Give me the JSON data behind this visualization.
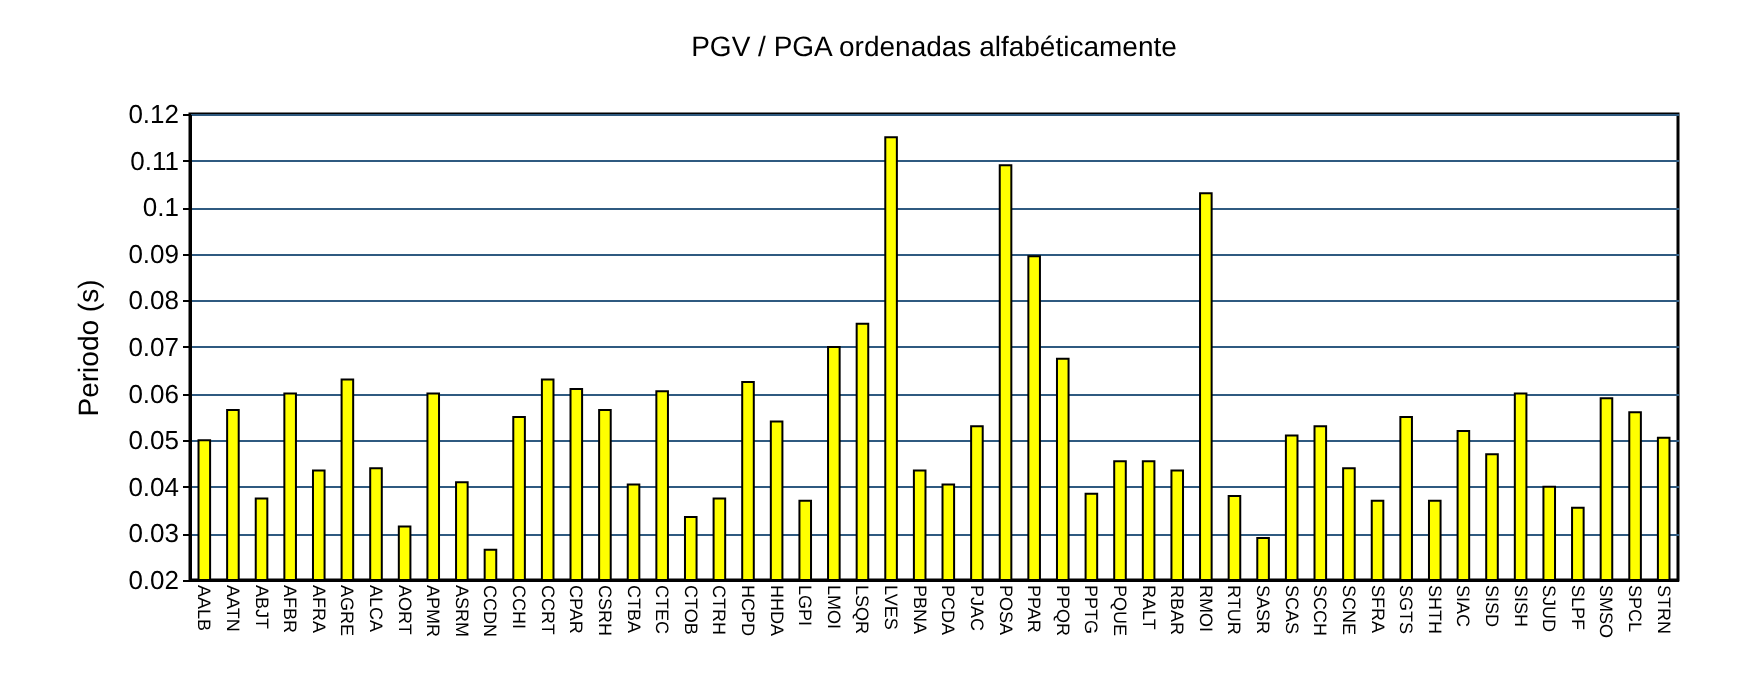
{
  "chart_data": {
    "type": "bar",
    "title": "PGV / PGA ordenadas alfabéticamente",
    "ylabel": "Periodo (s)",
    "categories": [
      "AALB",
      "AATN",
      "ABJT",
      "AFBR",
      "AFRA",
      "AGRE",
      "ALCA",
      "AORT",
      "APMR",
      "ASRM",
      "CCDN",
      "CCHI",
      "CCRT",
      "CPAR",
      "CSRH",
      "CTBA",
      "CTEC",
      "CTOB",
      "CTRH",
      "HCPD",
      "HHDA",
      "LGPI",
      "LMOI",
      "LSQR",
      "LVES",
      "PBNA",
      "PCDA",
      "PJAC",
      "POSA",
      "PPAR",
      "PPQR",
      "PPTG",
      "PQUE",
      "RALT",
      "RBAR",
      "RMOI",
      "RTUR",
      "SASR",
      "SCAS",
      "SCCH",
      "SCNE",
      "SFRA",
      "SGTS",
      "SHTH",
      "SIAC",
      "SISD",
      "SISH",
      "SJUD",
      "SLPF",
      "SMSO",
      "SPCL",
      "STRN"
    ],
    "values": [
      0.05,
      0.0565,
      0.0375,
      0.06,
      0.0435,
      0.063,
      0.044,
      0.0315,
      0.06,
      0.041,
      0.0265,
      0.055,
      0.063,
      0.061,
      0.0565,
      0.0405,
      0.0605,
      0.0335,
      0.0375,
      0.0625,
      0.054,
      0.037,
      0.07,
      0.075,
      0.115,
      0.0435,
      0.0405,
      0.053,
      0.109,
      0.0895,
      0.0675,
      0.0385,
      0.0455,
      0.0455,
      0.0435,
      0.103,
      0.038,
      0.029,
      0.051,
      0.053,
      0.044,
      0.037,
      0.055,
      0.037,
      0.052,
      0.047,
      0.06,
      0.04,
      0.0355,
      0.059,
      0.056,
      0.0505
    ],
    "color": "#ffff00",
    "ylim": [
      0.02,
      0.12
    ],
    "yticks": [
      0.02,
      0.03,
      0.04,
      0.05,
      0.06,
      0.07,
      0.08,
      0.09,
      {
        "value": 0.1,
        "label": "0.1"
      },
      0.11,
      0.12
    ],
    "grid": "y"
  }
}
